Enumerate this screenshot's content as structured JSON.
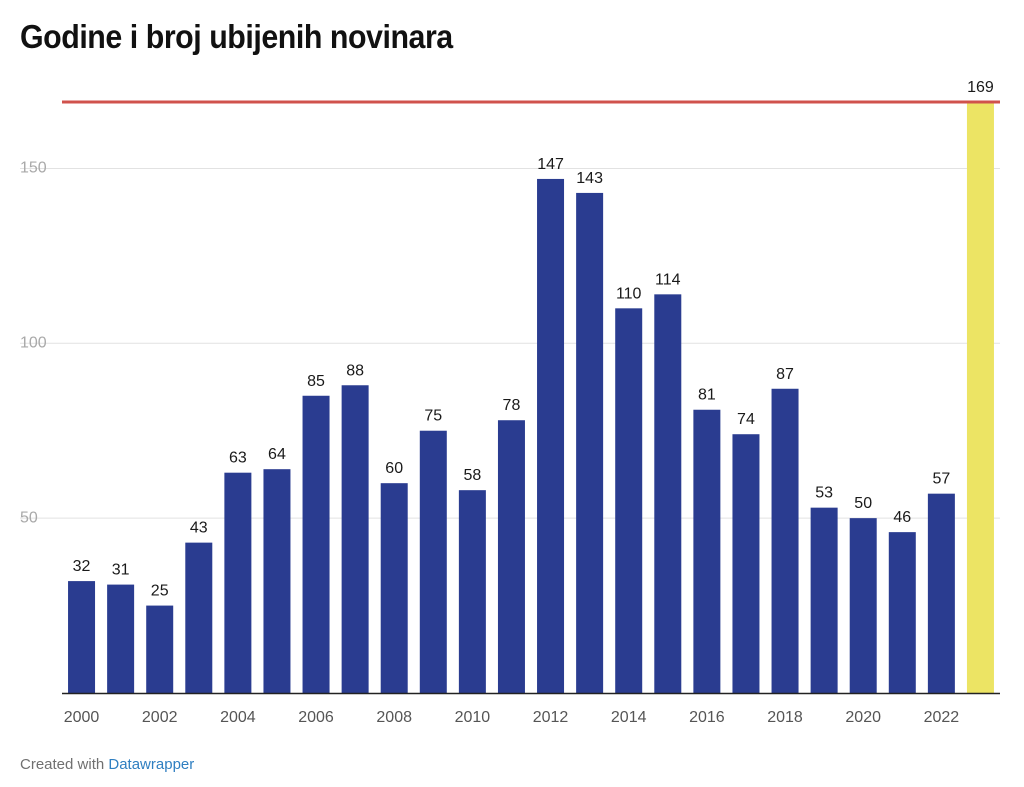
{
  "chart_data": {
    "type": "bar",
    "title": "Godine i broj ubijenih novinara",
    "categories": [
      "2000",
      "2001",
      "2002",
      "2003",
      "2004",
      "2005",
      "2006",
      "2007",
      "2008",
      "2009",
      "2010",
      "2011",
      "2012",
      "2013",
      "2014",
      "2015",
      "2016",
      "2017",
      "2018",
      "2019",
      "2020",
      "2021",
      "2022",
      "2023"
    ],
    "values": [
      32,
      31,
      25,
      43,
      63,
      64,
      85,
      88,
      60,
      75,
      58,
      78,
      147,
      143,
      110,
      114,
      81,
      74,
      87,
      53,
      50,
      46,
      57,
      169
    ],
    "value_labels": [
      "32",
      "31",
      "25",
      "43",
      "63",
      "64",
      "85",
      "88",
      "60",
      "75",
      "58",
      "78",
      "147",
      "143",
      "110",
      "114",
      "81",
      "74",
      "87",
      "53",
      "50",
      "46",
      "57",
      "169"
    ],
    "x_tick_labels": [
      "2000",
      "2002",
      "2004",
      "2006",
      "2008",
      "2010",
      "2012",
      "2014",
      "2016",
      "2018",
      "2020",
      "2022"
    ],
    "y_ticks": [
      50,
      100,
      150
    ],
    "y_tick_labels": [
      "50",
      "100",
      "150"
    ],
    "ylim": [
      0,
      169
    ],
    "reference_line": 169,
    "xlabel": "",
    "ylabel": "",
    "grid": true,
    "colors": {
      "bar": "#2a3c90",
      "highlight_bar": "#ece464",
      "reference_line": "#d0524c",
      "grid": "#e2e2e2",
      "axis": "#222222",
      "tick_label": "#a9a9a9",
      "x_tick_label": "#555555"
    }
  },
  "footer": {
    "prefix": "Created with ",
    "brand": "Datawrapper"
  }
}
